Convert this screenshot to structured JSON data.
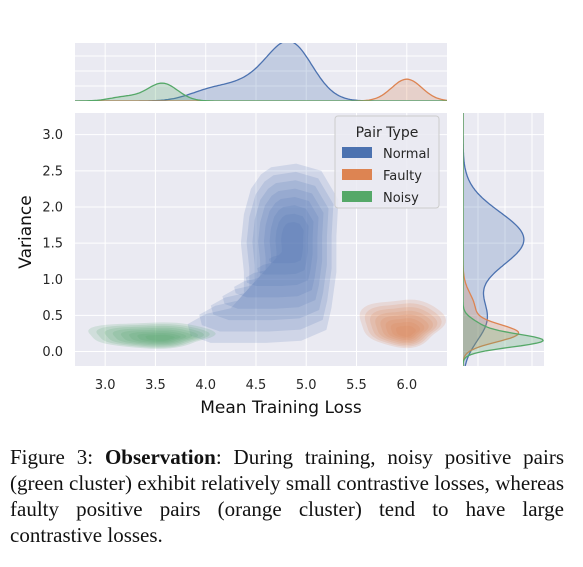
{
  "chart_data": {
    "type": "kde",
    "xlabel": "Mean Training Loss",
    "ylabel": "Variance",
    "xlim": [
      2.7,
      6.4
    ],
    "ylim": [
      -0.2,
      3.3
    ],
    "xticks": [
      "3.0",
      "3.5",
      "4.0",
      "4.5",
      "5.0",
      "5.5",
      "6.0"
    ],
    "yticks": [
      "0.0",
      "0.5",
      "1.0",
      "1.5",
      "2.0",
      "2.5",
      "3.0"
    ],
    "grid": true,
    "legend": {
      "title": "Pair Type",
      "placement": "top-right",
      "entries": [
        {
          "label": "Normal",
          "color": "#4c72b0"
        },
        {
          "label": "Faulty",
          "color": "#dd8452"
        },
        {
          "label": "Noisy",
          "color": "#55a868"
        }
      ]
    },
    "series": [
      {
        "name": "Normal",
        "center_x": 4.87,
        "center_y": 1.55,
        "x_range": [
          3.8,
          5.3
        ],
        "y_range": [
          0.1,
          2.6
        ]
      },
      {
        "name": "Faulty",
        "center_x": 6.0,
        "center_y": 0.25,
        "x_range": [
          5.45,
          6.3
        ],
        "y_range": [
          0.05,
          0.8
        ]
      },
      {
        "name": "Noisy",
        "center_x": 3.57,
        "center_y": 0.18,
        "x_range": [
          2.9,
          3.8
        ],
        "y_range": [
          0.0,
          0.45
        ]
      }
    ],
    "marginals": {
      "top": "density of mean training loss per pair type",
      "right": "density of variance per pair type"
    }
  },
  "caption": {
    "label": "Figure 3:",
    "bold": "Observation",
    "text": ": During training, noisy positive pairs (green cluster) exhibit relatively small contrastive losses, whereas faulty positive pairs (orange cluster) tend to have large contrastive losses."
  }
}
